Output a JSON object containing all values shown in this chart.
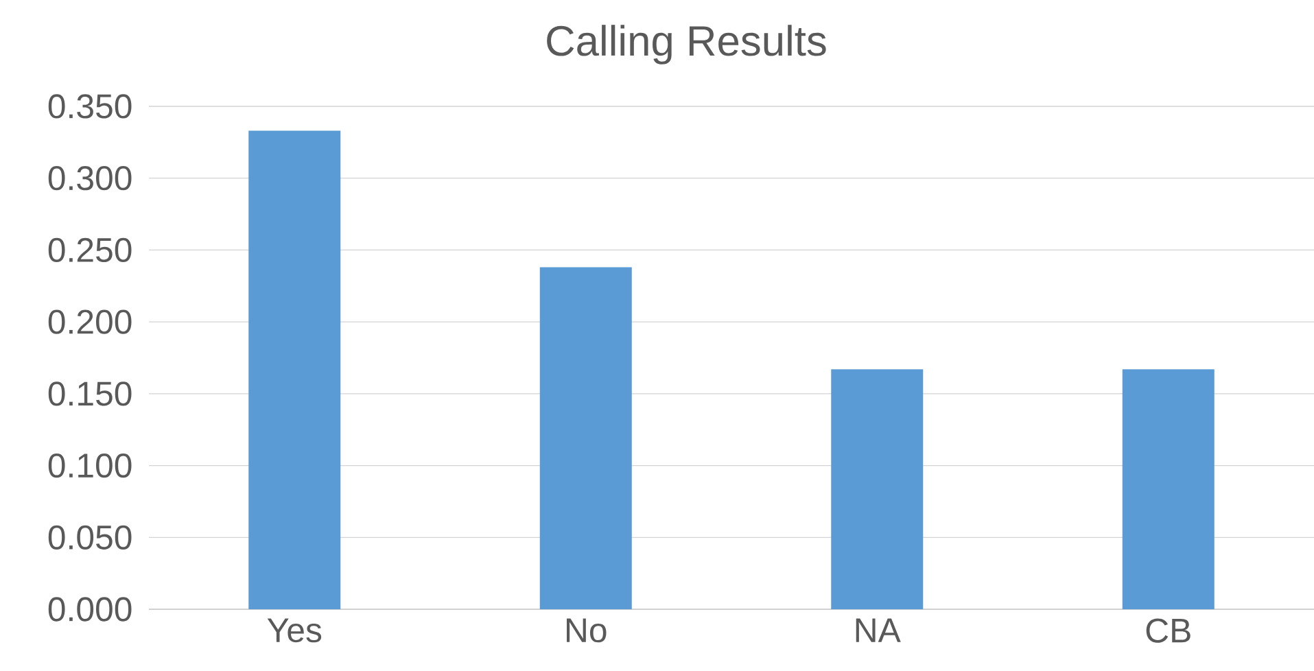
{
  "chart_data": {
    "type": "bar",
    "title": "Calling Results",
    "categories": [
      "Yes",
      "No",
      "NA",
      "CB"
    ],
    "values": [
      0.333,
      0.238,
      0.167,
      0.167
    ],
    "color": "#5b9bd5",
    "ylim": [
      0,
      0.35
    ],
    "yticks": [
      {
        "value": 0,
        "label": "0.000"
      },
      {
        "value": 0.05,
        "label": "0.050"
      },
      {
        "value": 0.1,
        "label": "0.100"
      },
      {
        "value": 0.15,
        "label": "0.150"
      },
      {
        "value": 0.2,
        "label": "0.200"
      },
      {
        "value": 0.25,
        "label": "0.250"
      },
      {
        "value": 0.3,
        "label": "0.300"
      },
      {
        "value": 0.35,
        "label": "0.350"
      }
    ],
    "grid": "y"
  }
}
